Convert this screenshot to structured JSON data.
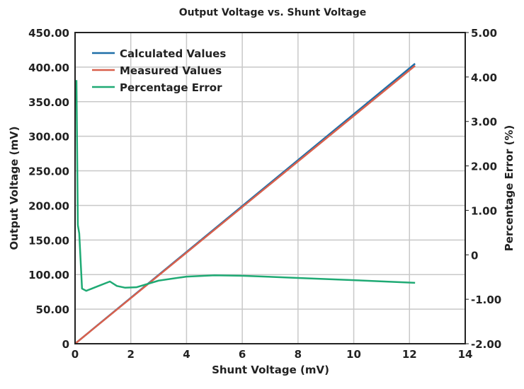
{
  "chart_data": {
    "type": "line",
    "title": "Output Voltage vs. Shunt Voltage",
    "xlabel": "Shunt Voltage (mV)",
    "ylabel": "Output Voltage (mV)",
    "y2label": "Percentage Error (%)",
    "xlim": [
      0,
      14
    ],
    "ylim": [
      0,
      450
    ],
    "y2lim": [
      -2,
      5
    ],
    "grid": true,
    "legend_position": "top-left",
    "xticks": [
      "0",
      "2",
      "4",
      "6",
      "8",
      "10",
      "12",
      "14"
    ],
    "yticks": [
      "0",
      "50.00",
      "100.00",
      "150.00",
      "200.00",
      "250.00",
      "300.00",
      "350.00",
      "400.00",
      "450.00"
    ],
    "y2ticks": [
      "-2.00",
      "-1.00",
      "0",
      "1.00",
      "2.00",
      "3.00",
      "4.00",
      "5.00"
    ],
    "series": [
      {
        "name": "Calculated Values",
        "axis": "left",
        "color": "#1f6fa8",
        "x": [
          0,
          12.2
        ],
        "y": [
          0,
          405
        ]
      },
      {
        "name": "Measured Values",
        "axis": "left",
        "color": "#d9604c",
        "x": [
          0,
          12.2
        ],
        "y": [
          0,
          402
        ]
      },
      {
        "name": "Percentage Error",
        "axis": "right",
        "color": "#1faa74",
        "x": [
          0.05,
          0.1,
          0.15,
          0.25,
          0.4,
          0.8,
          1.25,
          1.5,
          1.8,
          2.2,
          3,
          4,
          5,
          6,
          8,
          10,
          12.2
        ],
        "y": [
          3.93,
          0.67,
          0.48,
          -0.76,
          -0.81,
          -0.71,
          -0.6,
          -0.7,
          -0.74,
          -0.73,
          -0.58,
          -0.49,
          -0.46,
          -0.47,
          -0.52,
          -0.57,
          -0.63
        ]
      }
    ]
  }
}
